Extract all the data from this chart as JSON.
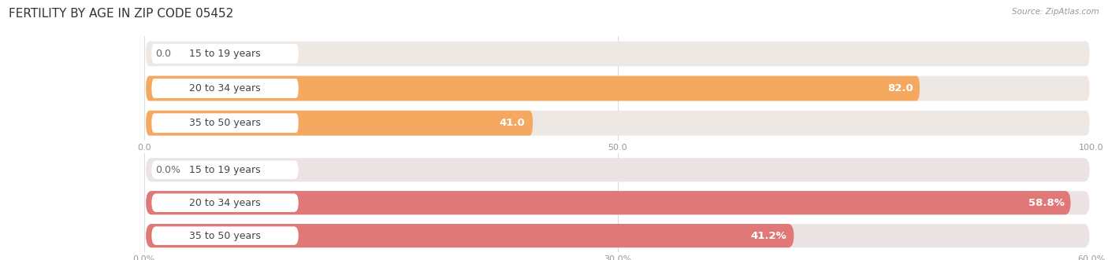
{
  "title": "FERTILITY BY AGE IN ZIP CODE 05452",
  "source": "Source: ZipAtlas.com",
  "chart1": {
    "categories": [
      "15 to 19 years",
      "20 to 34 years",
      "35 to 50 years"
    ],
    "values": [
      0.0,
      82.0,
      41.0
    ],
    "xlim": [
      0,
      100
    ],
    "xticks": [
      0.0,
      50.0,
      100.0
    ],
    "xtick_labels": [
      "0.0",
      "50.0",
      "100.0"
    ],
    "bar_color": "#f5a860",
    "bar_bg_color": "#ede8e4",
    "label_pill_color": "#ffffff",
    "label_inside_color": "#ffffff",
    "label_outside_color": "#666666",
    "value_threshold": 8
  },
  "chart2": {
    "categories": [
      "15 to 19 years",
      "20 to 34 years",
      "35 to 50 years"
    ],
    "values": [
      0.0,
      58.8,
      41.2
    ],
    "xlim": [
      0,
      60
    ],
    "xticks": [
      0.0,
      30.0,
      60.0
    ],
    "xtick_labels": [
      "0.0%",
      "30.0%",
      "60.0%"
    ],
    "bar_color": "#e07878",
    "bar_bg_color": "#ece4e4",
    "label_pill_color": "#ffffff",
    "label_inside_color": "#ffffff",
    "label_outside_color": "#666666",
    "value_threshold": 8
  },
  "background_color": "#ffffff",
  "bar_height": 0.72,
  "title_fontsize": 11,
  "label_fontsize": 9,
  "tick_fontsize": 8,
  "source_fontsize": 7.5
}
